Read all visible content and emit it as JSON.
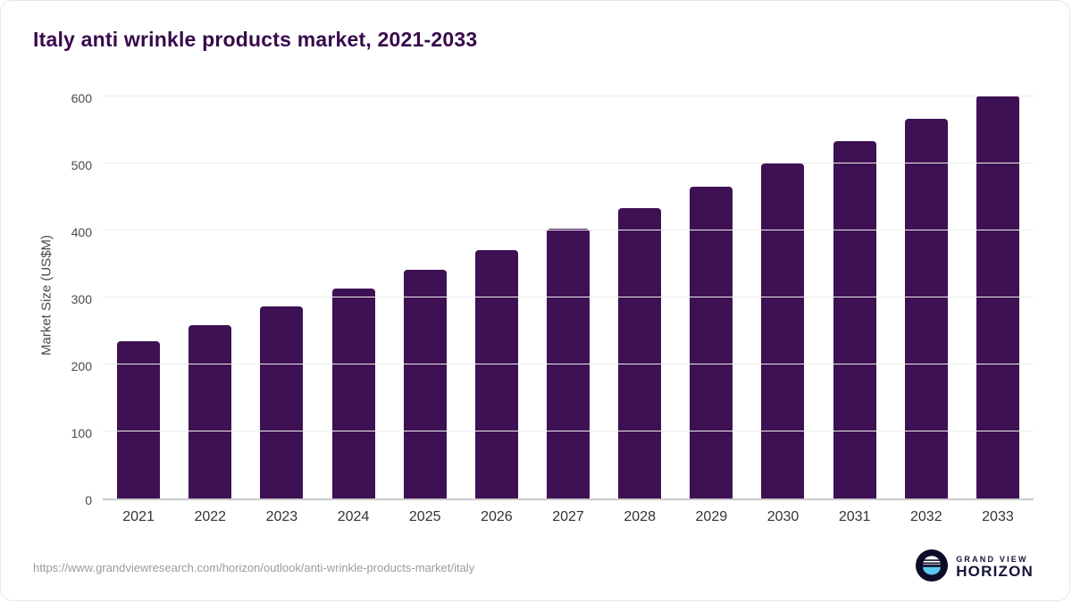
{
  "title": "Italy anti wrinkle products market, 2021-2033",
  "chart_data": {
    "type": "bar",
    "title": "Italy anti wrinkle products market, 2021-2033",
    "categories": [
      "2021",
      "2022",
      "2023",
      "2024",
      "2025",
      "2026",
      "2027",
      "2028",
      "2029",
      "2030",
      "2031",
      "2032",
      "2033"
    ],
    "values": [
      235,
      259,
      287,
      313,
      342,
      371,
      403,
      434,
      466,
      500,
      533,
      567,
      602
    ],
    "xlabel": "",
    "ylabel": "Market Size (US$M)",
    "ylim": [
      0,
      620
    ],
    "yticks": [
      0,
      100,
      200,
      300,
      400,
      500,
      600
    ],
    "bar_color": "#3d1153",
    "grid": "horizontal",
    "legend": "none"
  },
  "footer": {
    "source_url": "https://www.grandviewresearch.com/horizon/outlook/anti-wrinkle-products-market/italy",
    "logo_top": "GRAND VIEW",
    "logo_bottom": "HORIZON"
  },
  "colors": {
    "bar": "#3d1153",
    "title": "#38094c",
    "logo_navy": "#15153a",
    "logo_blue": "#5ac8f0"
  }
}
